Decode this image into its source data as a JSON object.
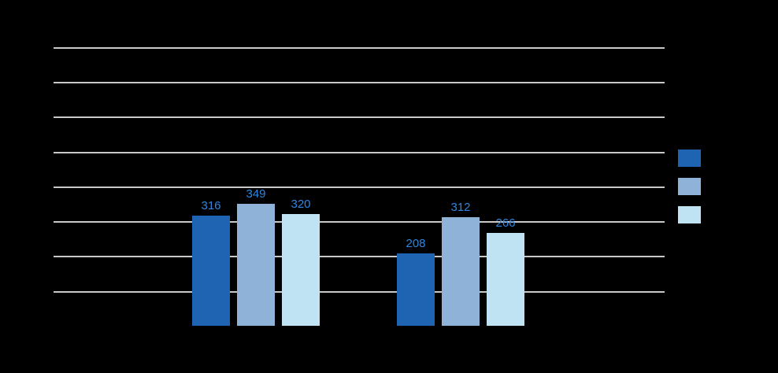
{
  "chart": {
    "background_color": "#000000",
    "gridline_color": "#c9c9c9",
    "data_label_color": "#2f86e0",
    "title": "",
    "visible_text": [
      "316",
      "349",
      "320",
      "208",
      "312",
      "266"
    ]
  },
  "chart_data": {
    "type": "bar",
    "categories": [
      "",
      ""
    ],
    "series": [
      {
        "name": "",
        "color": "#1e64b2",
        "values": [
          316,
          208
        ]
      },
      {
        "name": "",
        "color": "#8fb2d9",
        "values": [
          349,
          312
        ]
      },
      {
        "name": "",
        "color": "#bfe3f3",
        "values": [
          320,
          266
        ]
      }
    ],
    "title": "",
    "xlabel": "",
    "ylabel": "",
    "ylim": [
      0,
      800
    ],
    "gridline_step": 100,
    "grid": true,
    "legend_position": "right",
    "data_labels_visible": true
  }
}
